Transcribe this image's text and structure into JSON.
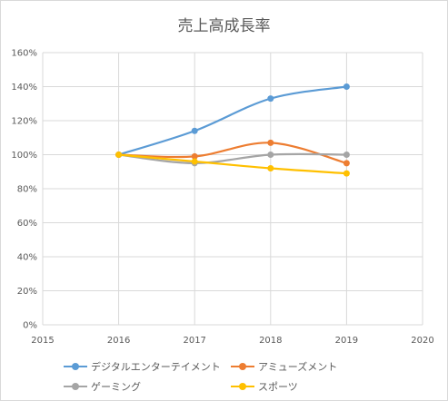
{
  "chart_data": {
    "type": "line",
    "title": "売上高成長率",
    "xlabel": "",
    "ylabel": "",
    "xlim": [
      2015,
      2020
    ],
    "ylim": [
      0,
      160
    ],
    "x_ticks": [
      "2015",
      "2016",
      "2017",
      "2018",
      "2019",
      "2020"
    ],
    "y_ticks": [
      "0%",
      "20%",
      "40%",
      "60%",
      "80%",
      "100%",
      "120%",
      "140%",
      "160%"
    ],
    "grid": true,
    "legend_position": "bottom",
    "series": [
      {
        "name": "デジタルエンターテイメント",
        "color": "#5b9bd5",
        "x": [
          2016,
          2017,
          2018,
          2019
        ],
        "y": [
          100,
          114,
          133,
          140
        ]
      },
      {
        "name": "アミューズメント",
        "color": "#ed7d31",
        "x": [
          2016,
          2017,
          2018,
          2019
        ],
        "y": [
          100,
          99,
          107,
          95
        ]
      },
      {
        "name": "ゲーミング",
        "color": "#a5a5a5",
        "x": [
          2016,
          2017,
          2018,
          2019
        ],
        "y": [
          100,
          95,
          100,
          100
        ]
      },
      {
        "name": "スポーツ",
        "color": "#ffc000",
        "x": [
          2016,
          2017,
          2018,
          2019
        ],
        "y": [
          100,
          96,
          92,
          89
        ]
      }
    ]
  }
}
